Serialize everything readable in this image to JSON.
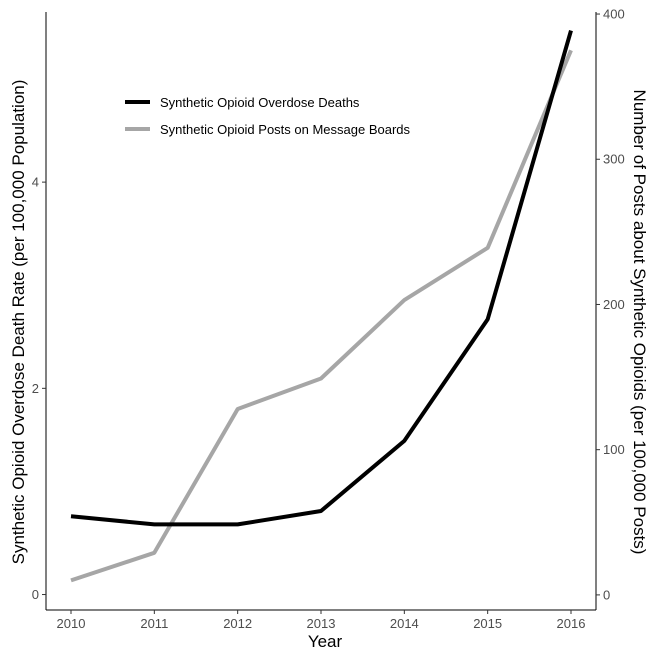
{
  "chart_data": {
    "type": "line",
    "x": [
      2010,
      2011,
      2012,
      2013,
      2014,
      2015,
      2016
    ],
    "xlabel": "Year",
    "ylabel_left": "Synthetic Opioid Overdose Death Rate (per 100,000 Population)",
    "ylabel_right": "Number of Posts about Synthetic Opioids (per 100,000 Posts)",
    "y_left_lim": [
      -0.15,
      5.65
    ],
    "y_left_ticks": [
      0,
      2,
      4
    ],
    "y_right_lim": [
      -10.4,
      401.4
    ],
    "y_right_ticks": [
      0,
      100,
      200,
      300,
      400
    ],
    "grid": false,
    "legend_position": "top-left",
    "series": [
      {
        "name": "Synthetic Opioid Overdose Deaths",
        "axis": "left",
        "color": "#000000",
        "values": [
          0.76,
          0.68,
          0.68,
          0.81,
          1.49,
          2.67,
          5.47
        ]
      },
      {
        "name": "Synthetic Opioid Posts on Message Boards",
        "axis": "right",
        "color": "#a6a6a6",
        "values": [
          10,
          29,
          128,
          149,
          203,
          239,
          375
        ]
      }
    ]
  }
}
